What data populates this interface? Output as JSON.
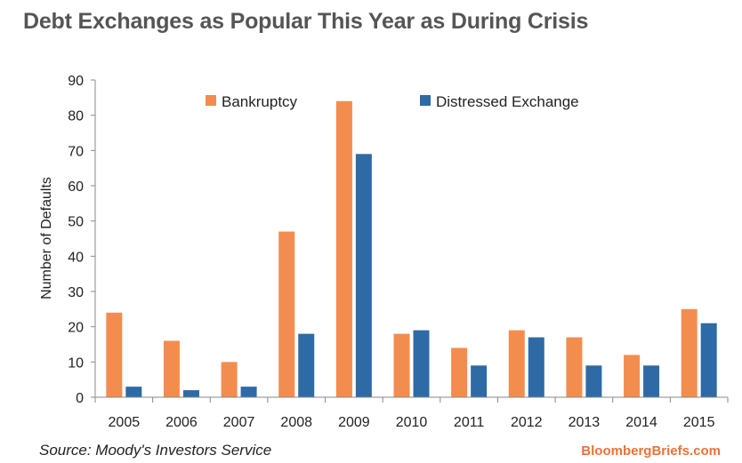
{
  "header": {
    "title": "Debt Exchanges as Popular This Year as During Crisis"
  },
  "footer": {
    "source": "Source: Moody's Investors Service",
    "brand": "BloombergBriefs.com"
  },
  "colors": {
    "bankruptcy": "#f28d4f",
    "distressed": "#2e6aa6",
    "brand": "#e8733a"
  },
  "chart_data": {
    "type": "bar",
    "title": "Debt Exchanges as Popular This Year as During Crisis",
    "xlabel": "",
    "ylabel": "Number of Defaults",
    "ylim": [
      0,
      90
    ],
    "yticks": [
      "0",
      "10",
      "20",
      "30",
      "40",
      "50",
      "60",
      "70",
      "80",
      "90"
    ],
    "grid": false,
    "legend_position": "top",
    "categories": [
      "2005",
      "2006",
      "2007",
      "2008",
      "2009",
      "2010",
      "2011",
      "2012",
      "2013",
      "2014",
      "2015"
    ],
    "series": [
      {
        "name": "Bankruptcy",
        "color": "#f28d4f",
        "values": [
          24,
          16,
          10,
          47,
          84,
          18,
          14,
          19,
          17,
          12,
          25
        ]
      },
      {
        "name": "Distressed Exchange",
        "color": "#2e6aa6",
        "values": [
          3,
          2,
          3,
          18,
          69,
          19,
          9,
          17,
          9,
          9,
          21
        ]
      }
    ]
  }
}
